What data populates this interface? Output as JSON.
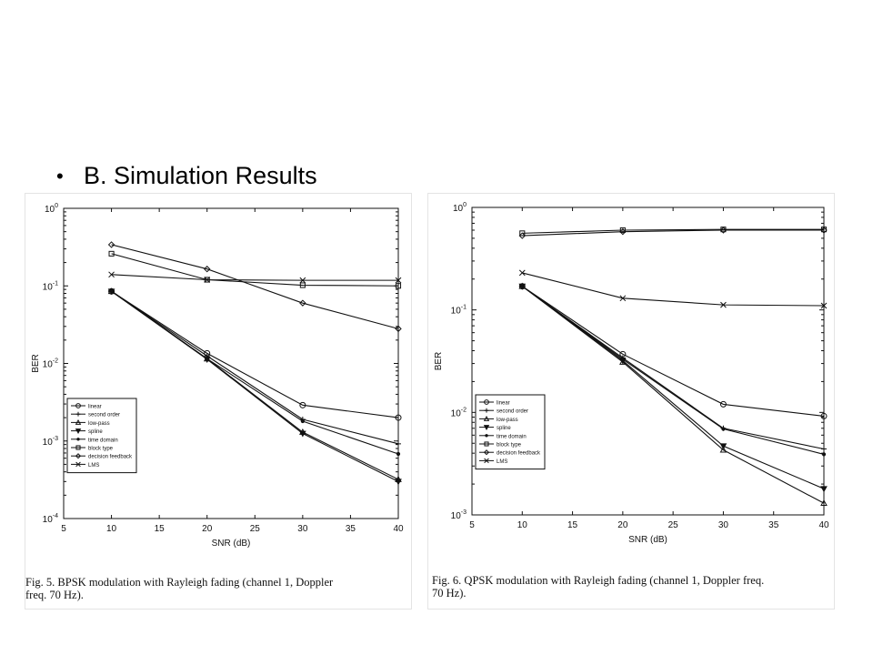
{
  "slide": {
    "bullet": "•",
    "heading": "B. Simulation Results"
  },
  "figures": [
    {
      "caption": "Fig. 5.  BPSK modulation with Rayleigh fading (channel 1, Doppler\nfreq. 70 Hz)."
    },
    {
      "caption": "Fig. 6.  QPSK modulation with Rayleigh fading (channel 1, Doppler freq.\n70 Hz)."
    }
  ],
  "chart_data": [
    {
      "type": "line",
      "title": "",
      "xlabel": "SNR (dB)",
      "ylabel": "BER",
      "xlim": [
        5,
        40
      ],
      "ylim": [
        0.0001,
        1
      ],
      "yscale": "log",
      "xticks": [
        "5",
        "10",
        "15",
        "20",
        "25",
        "30",
        "35",
        "40"
      ],
      "yticks": [
        {
          "base": "10",
          "exp": "0"
        },
        {
          "base": "10",
          "exp": "-1"
        },
        {
          "base": "10",
          "exp": "-2"
        },
        {
          "base": "10",
          "exp": "-3"
        },
        {
          "base": "10",
          "exp": "-4"
        }
      ],
      "grid": false,
      "legend_position": "bottom-left",
      "x": [
        10,
        20,
        30,
        40
      ],
      "series": [
        {
          "name": "linear",
          "marker": "circle",
          "values": [
            0.085,
            0.0135,
            0.0029,
            0.002
          ]
        },
        {
          "name": "second order",
          "marker": "plus",
          "values": [
            0.085,
            0.0125,
            0.0019,
            0.00092
          ]
        },
        {
          "name": "low-pass",
          "marker": "triangle-up",
          "values": [
            0.085,
            0.0115,
            0.0013,
            0.00032
          ]
        },
        {
          "name": "spline",
          "marker": "triangle-down",
          "values": [
            0.085,
            0.0113,
            0.00125,
            0.0003
          ]
        },
        {
          "name": "time domain",
          "marker": "dot",
          "values": [
            0.086,
            0.0115,
            0.0018,
            0.00068
          ]
        },
        {
          "name": "block type",
          "marker": "square",
          "values": [
            0.26,
            0.12,
            0.102,
            0.1
          ]
        },
        {
          "name": "decision feedback",
          "marker": "diamond",
          "values": [
            0.34,
            0.165,
            0.06,
            0.028
          ]
        },
        {
          "name": "LMS",
          "marker": "x",
          "values": [
            0.14,
            0.12,
            0.118,
            0.118
          ]
        }
      ]
    },
    {
      "type": "line",
      "title": "",
      "xlabel": "SNR (dB)",
      "ylabel": "BER",
      "xlim": [
        5,
        40
      ],
      "ylim": [
        0.001,
        1
      ],
      "yscale": "log",
      "xticks": [
        "5",
        "10",
        "15",
        "20",
        "25",
        "30",
        "35",
        "40"
      ],
      "yticks": [
        {
          "base": "10",
          "exp": "0"
        },
        {
          "base": "10",
          "exp": "-1"
        },
        {
          "base": "10",
          "exp": "-2"
        },
        {
          "base": "10",
          "exp": "-3"
        }
      ],
      "grid": false,
      "legend_position": "bottom-left",
      "x": [
        10,
        20,
        30,
        40
      ],
      "series": [
        {
          "name": "linear",
          "marker": "circle",
          "values": [
            0.17,
            0.037,
            0.012,
            0.0092
          ]
        },
        {
          "name": "second order",
          "marker": "plus",
          "values": [
            0.17,
            0.034,
            0.007,
            0.0044
          ]
        },
        {
          "name": "low-pass",
          "marker": "triangle-up",
          "values": [
            0.17,
            0.031,
            0.0043,
            0.0013
          ]
        },
        {
          "name": "spline",
          "marker": "triangle-down",
          "values": [
            0.17,
            0.032,
            0.0047,
            0.0018
          ]
        },
        {
          "name": "time domain",
          "marker": "dot",
          "values": [
            0.17,
            0.033,
            0.0069,
            0.0039
          ]
        },
        {
          "name": "block type",
          "marker": "square",
          "values": [
            0.56,
            0.6,
            0.61,
            0.61
          ]
        },
        {
          "name": "decision feedback",
          "marker": "diamond",
          "values": [
            0.53,
            0.58,
            0.6,
            0.6
          ]
        },
        {
          "name": "LMS",
          "marker": "x",
          "values": [
            0.23,
            0.13,
            0.112,
            0.11
          ]
        }
      ]
    }
  ]
}
